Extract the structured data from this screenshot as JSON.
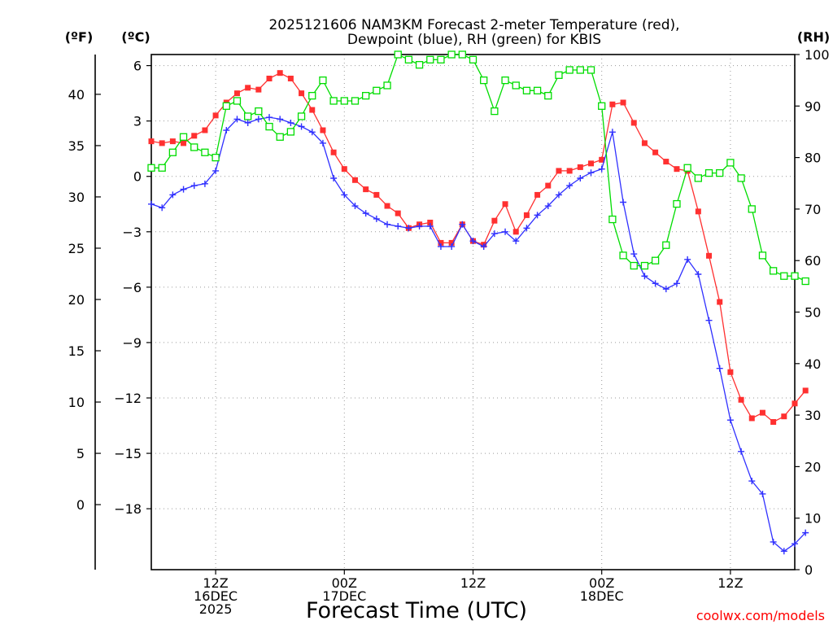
{
  "chart_data": {
    "type": "line",
    "title": [
      "2025121606 NAM3KM Forecast 2-meter Temperature (red),",
      "Dewpoint (blue), RH (green) for KBIS"
    ],
    "xlabel": "Forecast Time (UTC)",
    "credit": "coolwx.com/models",
    "axes": {
      "fahrenheit": {
        "unit_label": "(ºF)",
        "ticks": [
          0,
          5,
          10,
          15,
          20,
          25,
          30,
          35,
          40
        ]
      },
      "celsius": {
        "unit_label": "(ºC)",
        "ylim": [
          -21.3,
          6.6
        ],
        "ticks": [
          -18,
          -15,
          -12,
          -9,
          -6,
          -3,
          0,
          3,
          6
        ]
      },
      "rh": {
        "unit_label": "(RH)",
        "ylim": [
          0,
          100
        ],
        "ticks": [
          0,
          10,
          20,
          30,
          40,
          50,
          60,
          70,
          80,
          90,
          100
        ]
      }
    },
    "x_range_hours": [
      0,
      60
    ],
    "x_ticks": [
      {
        "hour": 6,
        "lines": [
          "12Z",
          "16DEC",
          "2025"
        ]
      },
      {
        "hour": 18,
        "lines": [
          "00Z",
          "17DEC"
        ]
      },
      {
        "hour": 30,
        "lines": [
          "12Z"
        ]
      },
      {
        "hour": 42,
        "lines": [
          "00Z",
          "18DEC"
        ]
      },
      {
        "hour": 54,
        "lines": [
          "12Z"
        ]
      }
    ],
    "series": [
      {
        "name": "Temperature (°C)",
        "color": "#ff3030",
        "marker": "filled-square",
        "axis": "celsius",
        "values": [
          1.9,
          1.8,
          1.9,
          1.8,
          2.2,
          2.5,
          3.3,
          4.0,
          4.5,
          4.8,
          4.7,
          5.3,
          5.6,
          5.3,
          4.5,
          3.6,
          2.5,
          1.3,
          0.4,
          -0.2,
          -0.7,
          -1.0,
          -1.6,
          -2.0,
          -2.8,
          -2.6,
          -2.5,
          -3.6,
          -3.6,
          -2.6,
          -3.5,
          -3.7,
          -2.4,
          -1.5,
          -3.0,
          -2.1,
          -1.0,
          -0.5,
          0.3,
          0.3,
          0.5,
          0.7,
          0.9,
          3.9,
          4.0,
          2.9,
          1.8,
          1.3,
          0.8,
          0.4,
          0.3,
          -1.9,
          -4.3,
          -6.8,
          -10.6,
          -12.1,
          -13.1,
          -12.8,
          -13.3,
          -13.0,
          -12.3,
          -11.6
        ]
      },
      {
        "name": "Dewpoint (°C)",
        "color": "#3030ff",
        "marker": "plus",
        "axis": "celsius",
        "values": [
          -1.5,
          -1.7,
          -1.0,
          -0.7,
          -0.5,
          -0.4,
          0.3,
          2.5,
          3.1,
          2.9,
          3.1,
          3.2,
          3.1,
          2.9,
          2.7,
          2.4,
          1.8,
          -0.1,
          -1.0,
          -1.6,
          -2.0,
          -2.3,
          -2.6,
          -2.7,
          -2.8,
          -2.7,
          -2.7,
          -3.8,
          -3.8,
          -2.6,
          -3.5,
          -3.8,
          -3.1,
          -3.0,
          -3.5,
          -2.8,
          -2.1,
          -1.6,
          -1.0,
          -0.5,
          -0.1,
          0.2,
          0.4,
          2.4,
          -1.4,
          -4.2,
          -5.4,
          -5.8,
          -6.1,
          -5.8,
          -4.5,
          -5.3,
          -7.8,
          -10.4,
          -13.2,
          -14.9,
          -16.5,
          -17.2,
          -19.8,
          -20.3,
          -19.9,
          -19.3
        ]
      },
      {
        "name": "RH (%)",
        "color": "#00dd00",
        "marker": "open-square",
        "axis": "rh",
        "values": [
          78,
          78,
          81,
          84,
          82,
          81,
          80,
          90,
          91,
          88,
          89,
          86,
          84,
          85,
          88,
          92,
          95,
          91,
          91,
          91,
          92,
          93,
          94,
          100,
          99,
          98,
          99,
          99,
          100,
          100,
          99,
          95,
          89,
          95,
          94,
          93,
          93,
          92,
          96,
          97,
          97,
          97,
          90,
          68,
          61,
          59,
          59,
          60,
          63,
          71,
          78,
          76,
          77,
          77,
          79,
          76,
          70,
          61,
          58,
          57,
          57,
          56
        ]
      }
    ]
  }
}
